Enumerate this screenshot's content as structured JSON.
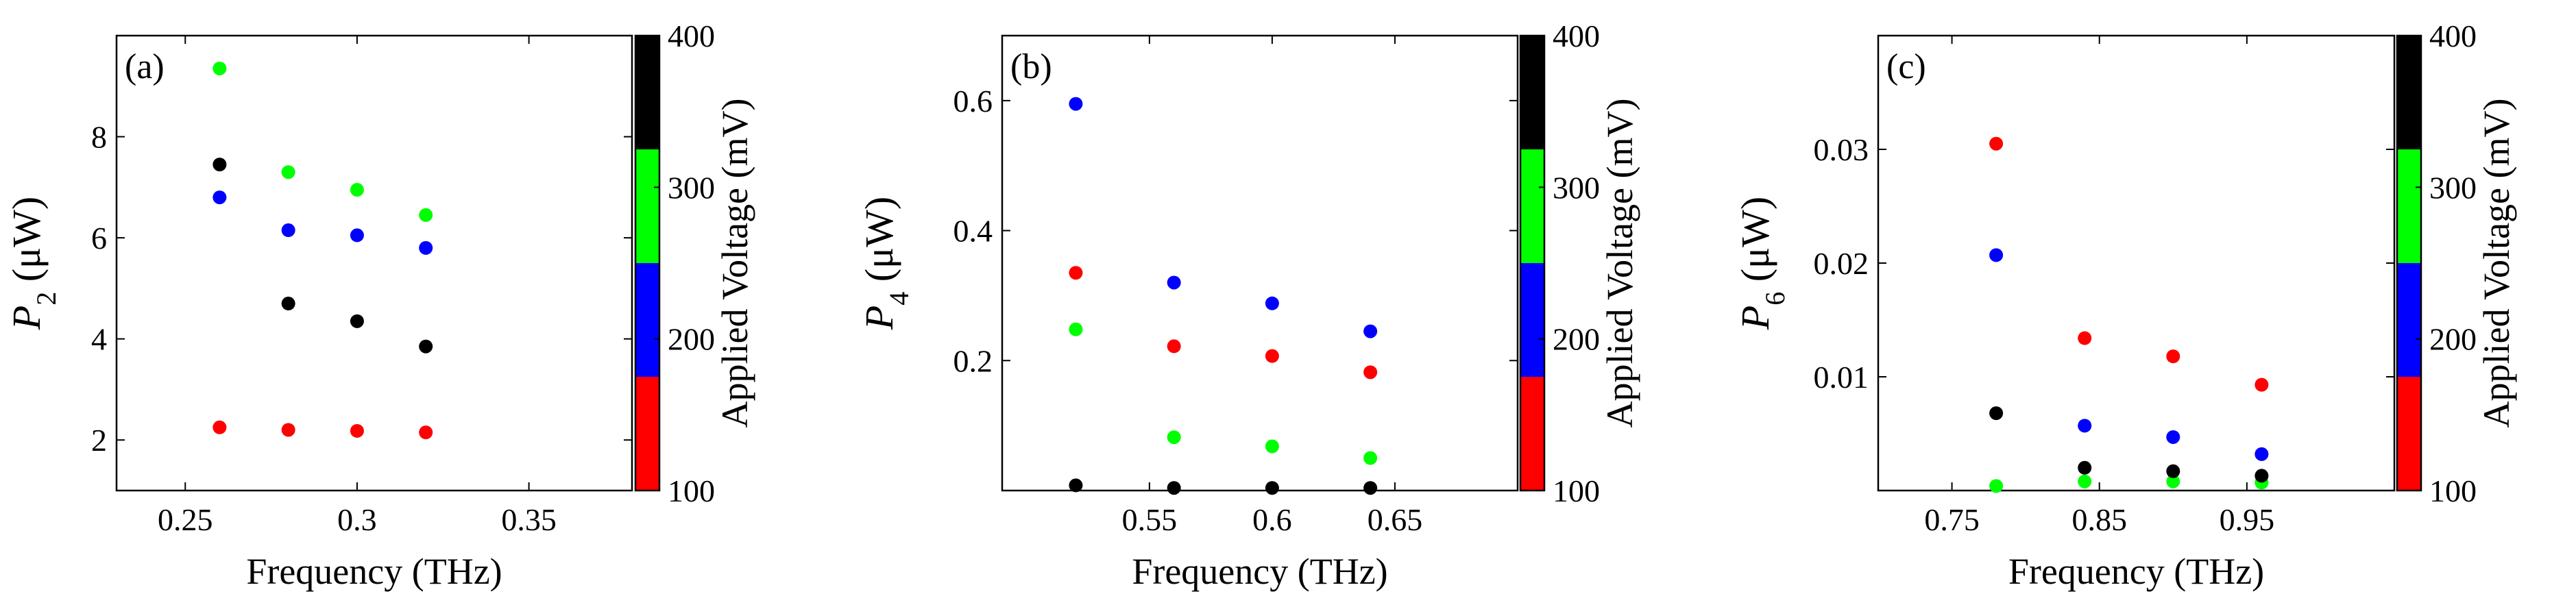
{
  "chart_data": [
    {
      "type": "scatter",
      "panel_label": "(a)",
      "ylabel_main": "P",
      "ylabel_sub": "2",
      "ylabel_unit": " (μW)",
      "xlabel": "Frequency (THz)",
      "xlim": [
        0.23,
        0.38
      ],
      "ylim": [
        1,
        10
      ],
      "xticks": [
        0.25,
        0.3,
        0.35
      ],
      "xtick_labels": [
        "0.25",
        "0.3",
        "0.35"
      ],
      "yticks": [
        2,
        4,
        6,
        8
      ],
      "ytick_labels": [
        "2",
        "4",
        "6",
        "8"
      ],
      "series": [
        {
          "name": "100 mV",
          "color": "#ff0000",
          "x": [
            0.26,
            0.28,
            0.3,
            0.32
          ],
          "y": [
            2.25,
            2.2,
            2.18,
            2.15
          ]
        },
        {
          "name": "200 mV",
          "color": "#0000ff",
          "x": [
            0.26,
            0.28,
            0.3,
            0.32
          ],
          "y": [
            6.8,
            6.15,
            6.05,
            5.8
          ]
        },
        {
          "name": "300 mV",
          "color": "#00ff00",
          "x": [
            0.26,
            0.28,
            0.3,
            0.32
          ],
          "y": [
            9.35,
            7.3,
            6.95,
            6.45
          ]
        },
        {
          "name": "400 mV",
          "color": "#000000",
          "x": [
            0.26,
            0.28,
            0.3,
            0.32
          ],
          "y": [
            7.45,
            4.7,
            4.35,
            3.85
          ]
        }
      ]
    },
    {
      "type": "scatter",
      "panel_label": "(b)",
      "ylabel_main": "P",
      "ylabel_sub": "4",
      "ylabel_unit": " (μW)",
      "xlabel": "Frequency (THz)",
      "xlim": [
        0.49,
        0.7
      ],
      "ylim": [
        0,
        0.7
      ],
      "xticks": [
        0.55,
        0.6,
        0.65
      ],
      "xtick_labels": [
        "0.55",
        "0.6",
        "0.65"
      ],
      "yticks": [
        0.2,
        0.4,
        0.6
      ],
      "ytick_labels": [
        "0.2",
        "0.4",
        "0.6"
      ],
      "series": [
        {
          "name": "100 mV",
          "color": "#ff0000",
          "x": [
            0.52,
            0.56,
            0.6,
            0.64
          ],
          "y": [
            0.335,
            0.222,
            0.207,
            0.182
          ]
        },
        {
          "name": "200 mV",
          "color": "#0000ff",
          "x": [
            0.52,
            0.56,
            0.6,
            0.64
          ],
          "y": [
            0.595,
            0.32,
            0.288,
            0.245
          ]
        },
        {
          "name": "300 mV",
          "color": "#00ff00",
          "x": [
            0.52,
            0.56,
            0.6,
            0.64
          ],
          "y": [
            0.248,
            0.082,
            0.068,
            0.05
          ]
        },
        {
          "name": "400 mV",
          "color": "#000000",
          "x": [
            0.52,
            0.56,
            0.6,
            0.64
          ],
          "y": [
            0.008,
            0.004,
            0.004,
            0.004
          ]
        }
      ]
    },
    {
      "type": "scatter",
      "panel_label": "(c)",
      "ylabel_main": "P",
      "ylabel_sub": "6",
      "ylabel_unit": " (μW)",
      "xlabel": "Frequency (THz)",
      "xlim": [
        0.7,
        1.05
      ],
      "ylim": [
        0,
        0.04
      ],
      "xticks": [
        0.75,
        0.85,
        0.95
      ],
      "xtick_labels": [
        "0.75",
        "0.85",
        "0.95"
      ],
      "yticks": [
        0.01,
        0.02,
        0.03
      ],
      "ytick_labels": [
        "0.01",
        "0.02",
        "0.03"
      ],
      "series": [
        {
          "name": "100 mV",
          "color": "#ff0000",
          "x": [
            0.78,
            0.84,
            0.9,
            0.96
          ],
          "y": [
            0.0305,
            0.0134,
            0.0118,
            0.0093
          ]
        },
        {
          "name": "200 mV",
          "color": "#0000ff",
          "x": [
            0.78,
            0.84,
            0.9,
            0.96
          ],
          "y": [
            0.0207,
            0.0057,
            0.0047,
            0.0032
          ]
        },
        {
          "name": "300 mV",
          "color": "#00ff00",
          "x": [
            0.78,
            0.84,
            0.9,
            0.96
          ],
          "y": [
            0.0004,
            0.0008,
            0.0008,
            0.0007
          ]
        },
        {
          "name": "400 mV",
          "color": "#000000",
          "x": [
            0.78,
            0.84,
            0.9,
            0.96
          ],
          "y": [
            0.0068,
            0.002,
            0.0017,
            0.0013
          ]
        }
      ]
    }
  ],
  "colorbar": {
    "label": "Applied Voltage (mV)",
    "range": [
      100,
      400
    ],
    "ticks": [
      100,
      200,
      300,
      400
    ],
    "tick_labels": [
      "100",
      "200",
      "300",
      "400"
    ],
    "segments": [
      {
        "from": 100,
        "to": 175,
        "color": "#ff0000"
      },
      {
        "from": 175,
        "to": 250,
        "color": "#0000ff"
      },
      {
        "from": 250,
        "to": 325,
        "color": "#00ff00"
      },
      {
        "from": 325,
        "to": 400,
        "color": "#000000"
      }
    ]
  }
}
